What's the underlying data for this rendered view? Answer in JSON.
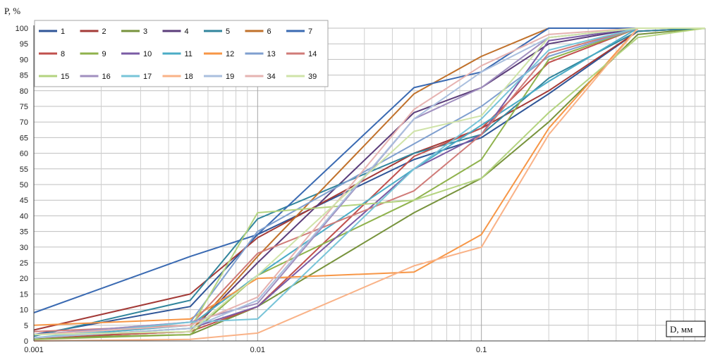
{
  "chart_data": {
    "type": "line",
    "title": "",
    "ylabel": "P, %",
    "xlabel": "D, мм",
    "x_scale": "log",
    "xlim": [
      0.001,
      1
    ],
    "ylim": [
      0,
      100
    ],
    "y_ticks": [
      0,
      5,
      10,
      15,
      20,
      25,
      30,
      35,
      40,
      45,
      50,
      55,
      60,
      65,
      70,
      75,
      80,
      85,
      90,
      95,
      100
    ],
    "x_tick_labels": [
      {
        "value": 0.001,
        "label": "0.001"
      },
      {
        "value": 0.01,
        "label": "0.01"
      },
      {
        "value": 0.1,
        "label": "0.1"
      }
    ],
    "grid": true,
    "legend_position": "top-left",
    "x": [
      0.001,
      0.005,
      0.01,
      0.05,
      0.1,
      0.2,
      0.5,
      1
    ],
    "series": [
      {
        "name": "1",
        "color": "#2f5597",
        "values": [
          2,
          11,
          34,
          58,
          65,
          79,
          99,
          100
        ]
      },
      {
        "name": "2",
        "color": "#a33a37",
        "values": [
          3.5,
          15,
          33,
          60,
          68,
          80,
          99,
          100
        ]
      },
      {
        "name": "3",
        "color": "#77933c",
        "values": [
          1,
          2,
          11,
          41,
          52,
          70,
          98,
          100
        ]
      },
      {
        "name": "4",
        "color": "#5b3d7a",
        "values": [
          1,
          3,
          25,
          73,
          81,
          95,
          100,
          100
        ]
      },
      {
        "name": "5",
        "color": "#31859c",
        "values": [
          1.5,
          13,
          39,
          60,
          66,
          84,
          99,
          100
        ]
      },
      {
        "name": "6",
        "color": "#c0712b",
        "values": [
          1,
          3,
          27,
          79,
          91,
          100,
          100,
          100
        ]
      },
      {
        "name": "7",
        "color": "#3a6ab2",
        "values": [
          9,
          27,
          34,
          81,
          86,
          100,
          100,
          100
        ]
      },
      {
        "name": "8",
        "color": "#c0504d",
        "values": [
          1,
          3,
          11,
          59,
          68,
          89,
          100,
          100
        ]
      },
      {
        "name": "9",
        "color": "#8fb24c",
        "values": [
          0.5,
          2,
          21,
          45,
          58,
          90,
          100,
          100
        ]
      },
      {
        "name": "10",
        "color": "#7a5ba4",
        "values": [
          1,
          4,
          11,
          55,
          66,
          96,
          100,
          100
        ]
      },
      {
        "name": "11",
        "color": "#4bacc6",
        "values": [
          1,
          5,
          21,
          55,
          69,
          83,
          100,
          100
        ]
      },
      {
        "name": "12",
        "color": "#f79646",
        "values": [
          5,
          7,
          20,
          22,
          34,
          68,
          100,
          100
        ]
      },
      {
        "name": "13",
        "color": "#7f9fcf",
        "values": [
          2,
          6,
          35,
          63,
          75,
          91,
          100,
          100
        ]
      },
      {
        "name": "14",
        "color": "#d07b78",
        "values": [
          3,
          5,
          28,
          48,
          66,
          92,
          100,
          100
        ]
      },
      {
        "name": "15",
        "color": "#b3d37f",
        "values": [
          1,
          4,
          41,
          45,
          52,
          73,
          97,
          100
        ]
      },
      {
        "name": "16",
        "color": "#a08fbf",
        "values": [
          2,
          6,
          12,
          71,
          81,
          97,
          100,
          100
        ]
      },
      {
        "name": "17",
        "color": "#78c4d8",
        "values": [
          1,
          6,
          7,
          55,
          71,
          93,
          100,
          100
        ]
      },
      {
        "name": "18",
        "color": "#f9b287",
        "values": [
          0,
          0.5,
          2.5,
          24,
          30,
          66,
          100,
          100
        ]
      },
      {
        "name": "19",
        "color": "#aabfde",
        "values": [
          1,
          4,
          13,
          71,
          86,
          97,
          100,
          100
        ]
      },
      {
        "name": "34",
        "color": "#e6b3b1",
        "values": [
          2,
          5,
          14,
          74,
          88,
          98,
          100,
          100
        ]
      },
      {
        "name": "39",
        "color": "#cfe3a8",
        "values": [
          2,
          3,
          21,
          67,
          72,
          97,
          100,
          100
        ]
      }
    ]
  }
}
